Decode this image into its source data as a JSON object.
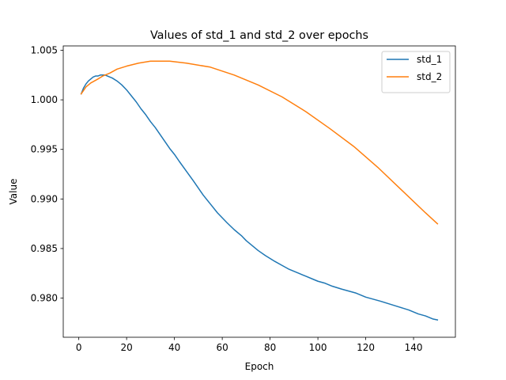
{
  "chart_data": {
    "type": "line",
    "title": "Values of std_1 and std_2 over epochs",
    "xlabel": "Epoch",
    "ylabel": "Value",
    "xlim": [
      -6.5,
      157.5
    ],
    "ylim": [
      0.97605,
      1.00544
    ],
    "xticks": [
      0,
      20,
      40,
      60,
      80,
      100,
      120,
      140
    ],
    "yticks": [
      0.98,
      0.985,
      0.99,
      0.995,
      1.0,
      1.005
    ],
    "ytick_labels": [
      "0.980",
      "0.985",
      "0.990",
      "0.995",
      "1.000",
      "1.005"
    ],
    "grid": false,
    "legend": "top-right",
    "series": [
      {
        "name": "std_1",
        "color": "#1f77b4",
        "x": [
          1,
          2,
          3,
          4,
          5,
          6,
          7,
          8,
          9,
          10,
          11,
          12,
          13,
          14,
          16,
          18,
          20,
          22,
          24,
          26,
          28,
          30,
          32,
          34,
          36,
          38,
          40,
          42,
          45,
          48,
          50,
          52,
          55,
          58,
          60,
          62,
          65,
          68,
          70,
          72,
          75,
          78,
          80,
          82,
          85,
          88,
          90,
          92,
          95,
          98,
          100,
          103,
          106,
          110,
          113,
          116,
          118,
          120,
          123,
          126,
          130,
          134,
          138,
          142,
          145,
          148,
          150
        ],
        "values": [
          1.0006,
          1.0012,
          1.0016,
          1.0019,
          1.0021,
          1.0023,
          1.0024,
          1.0024,
          1.0025,
          1.0025,
          1.0025,
          1.0024,
          1.0023,
          1.0022,
          1.0019,
          1.0015,
          1.001,
          1.0004,
          0.9998,
          0.9991,
          0.9985,
          0.9978,
          0.9972,
          0.9965,
          0.9958,
          0.9951,
          0.9945,
          0.9938,
          0.9928,
          0.9918,
          0.9911,
          0.9904,
          0.9895,
          0.9886,
          0.9881,
          0.9876,
          0.9869,
          0.9863,
          0.9858,
          0.9854,
          0.9848,
          0.9843,
          0.984,
          0.9837,
          0.9833,
          0.9829,
          0.9827,
          0.9825,
          0.9822,
          0.9819,
          0.9817,
          0.9815,
          0.9812,
          0.9809,
          0.9807,
          0.9805,
          0.9803,
          0.9801,
          0.9799,
          0.9797,
          0.9794,
          0.9791,
          0.9788,
          0.9784,
          0.9782,
          0.9779,
          0.9778
        ]
      },
      {
        "name": "std_2",
        "color": "#ff7f0e",
        "x": [
          1,
          3,
          5,
          8,
          10,
          13,
          16,
          20,
          25,
          30,
          33,
          38,
          45,
          55,
          65,
          75,
          85,
          95,
          105,
          115,
          125,
          135,
          145,
          150
        ],
        "values": [
          1.0006,
          1.0013,
          1.0017,
          1.0021,
          1.0024,
          1.0027,
          1.0031,
          1.0034,
          1.0037,
          1.0039,
          1.0039,
          1.0039,
          1.0037,
          1.0033,
          1.0025,
          1.0015,
          1.0003,
          0.9988,
          0.9971,
          0.9953,
          0.9932,
          0.9909,
          0.9886,
          0.9875
        ]
      }
    ]
  }
}
